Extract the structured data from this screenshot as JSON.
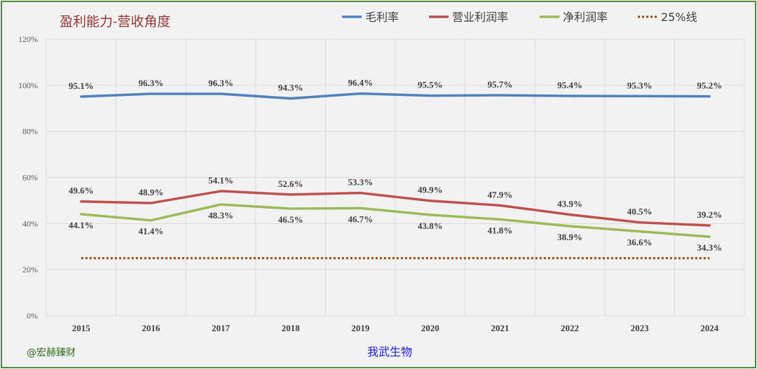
{
  "chart_data": {
    "type": "line",
    "title": "盈利能力-营收角度",
    "categories": [
      "2015",
      "2016",
      "2017",
      "2018",
      "2019",
      "2020",
      "2021",
      "2022",
      "2023",
      "2024"
    ],
    "ylim": [
      0,
      120
    ],
    "yticks": [
      0,
      20,
      40,
      60,
      80,
      100,
      120
    ],
    "ytick_labels": [
      "0%",
      "20%",
      "40%",
      "60%",
      "80%",
      "100%",
      "120%"
    ],
    "grid": true,
    "legend_position": "top",
    "series": [
      {
        "name": "毛利率",
        "color": "#4f81bd",
        "style": "solid",
        "values": [
          95.1,
          96.3,
          96.3,
          94.3,
          96.4,
          95.5,
          95.7,
          95.4,
          95.3,
          95.2
        ],
        "labels": [
          "95.1%",
          "96.3%",
          "96.3%",
          "94.3%",
          "96.4%",
          "95.5%",
          "95.7%",
          "95.4%",
          "95.3%",
          "95.2%"
        ],
        "label_side": [
          "above",
          "above",
          "above",
          "above",
          "above",
          "above",
          "above",
          "above",
          "above",
          "above"
        ]
      },
      {
        "name": "营业利润率",
        "color": "#c0504d",
        "style": "solid",
        "values": [
          49.6,
          48.9,
          54.1,
          52.6,
          53.3,
          49.9,
          47.9,
          43.9,
          40.5,
          39.2
        ],
        "labels": [
          "49.6%",
          "48.9%",
          "54.1%",
          "52.6%",
          "53.3%",
          "49.9%",
          "47.9%",
          "43.9%",
          "40.5%",
          "39.2%"
        ],
        "label_side": [
          "above",
          "above",
          "above",
          "above",
          "above",
          "above",
          "above",
          "above",
          "above",
          "above"
        ]
      },
      {
        "name": "净利润率",
        "color": "#9bbb59",
        "style": "solid",
        "values": [
          44.1,
          41.4,
          48.3,
          46.5,
          46.7,
          43.8,
          41.8,
          38.9,
          36.6,
          34.3
        ],
        "labels": [
          "44.1%",
          "41.4%",
          "48.3%",
          "46.5%",
          "46.7%",
          "43.8%",
          "41.8%",
          "38.9%",
          "36.6%",
          "34.3%"
        ],
        "label_side": [
          "below",
          "below",
          "below",
          "below",
          "below",
          "below",
          "below",
          "below",
          "below",
          "below"
        ]
      },
      {
        "name": "25%线",
        "color": "#984807",
        "style": "dotted",
        "values": [
          25,
          25,
          25,
          25,
          25,
          25,
          25,
          25,
          25,
          25
        ]
      }
    ]
  },
  "footer": {
    "left": "@宏赫臻财",
    "center": "我武生物"
  }
}
